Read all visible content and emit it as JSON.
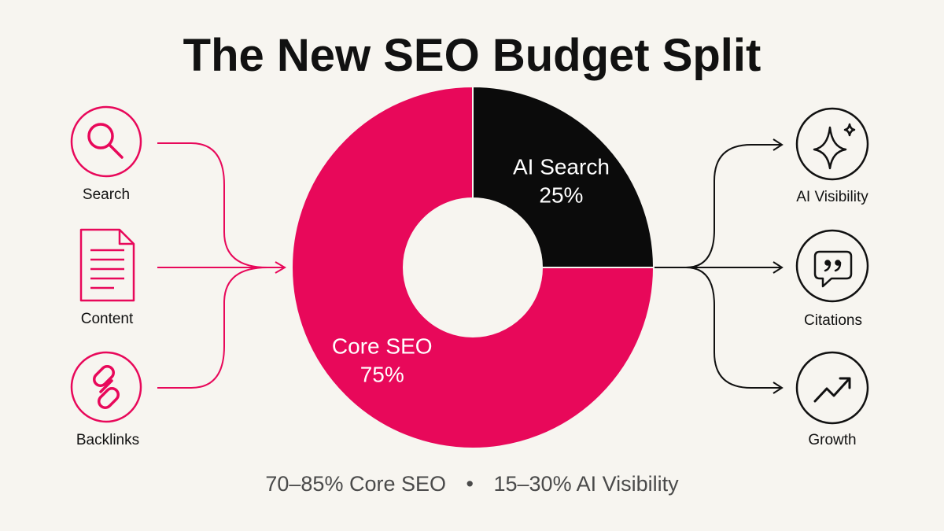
{
  "title": "The New SEO Budget Split",
  "footer": {
    "core": "70–85% Core SEO",
    "separator": "•",
    "ai": "15–30% AI Visibility"
  },
  "colors": {
    "background": "#f7f5f0",
    "accent": "#e8085a",
    "dark": "#0b0b0b",
    "text": "#111111",
    "footer_text": "#4a4a4a"
  },
  "inputs": [
    {
      "label": "Search",
      "icon": "magnifier-icon"
    },
    {
      "label": "Content",
      "icon": "document-icon"
    },
    {
      "label": "Backlinks",
      "icon": "link-icon"
    }
  ],
  "outputs": [
    {
      "label": "AI Visibility",
      "icon": "sparkle-icon"
    },
    {
      "label": "Citations",
      "icon": "quote-bubble-icon"
    },
    {
      "label": "Growth",
      "icon": "trend-up-icon"
    }
  ],
  "chart_data": {
    "type": "pie",
    "title": "The New SEO Budget Split",
    "donut": true,
    "slices": [
      {
        "label": "AI Search",
        "value": 25,
        "display": "25%",
        "color": "#0b0b0b"
      },
      {
        "label": "Core SEO",
        "value": 75,
        "display": "75%",
        "color": "#e8085a"
      }
    ]
  }
}
